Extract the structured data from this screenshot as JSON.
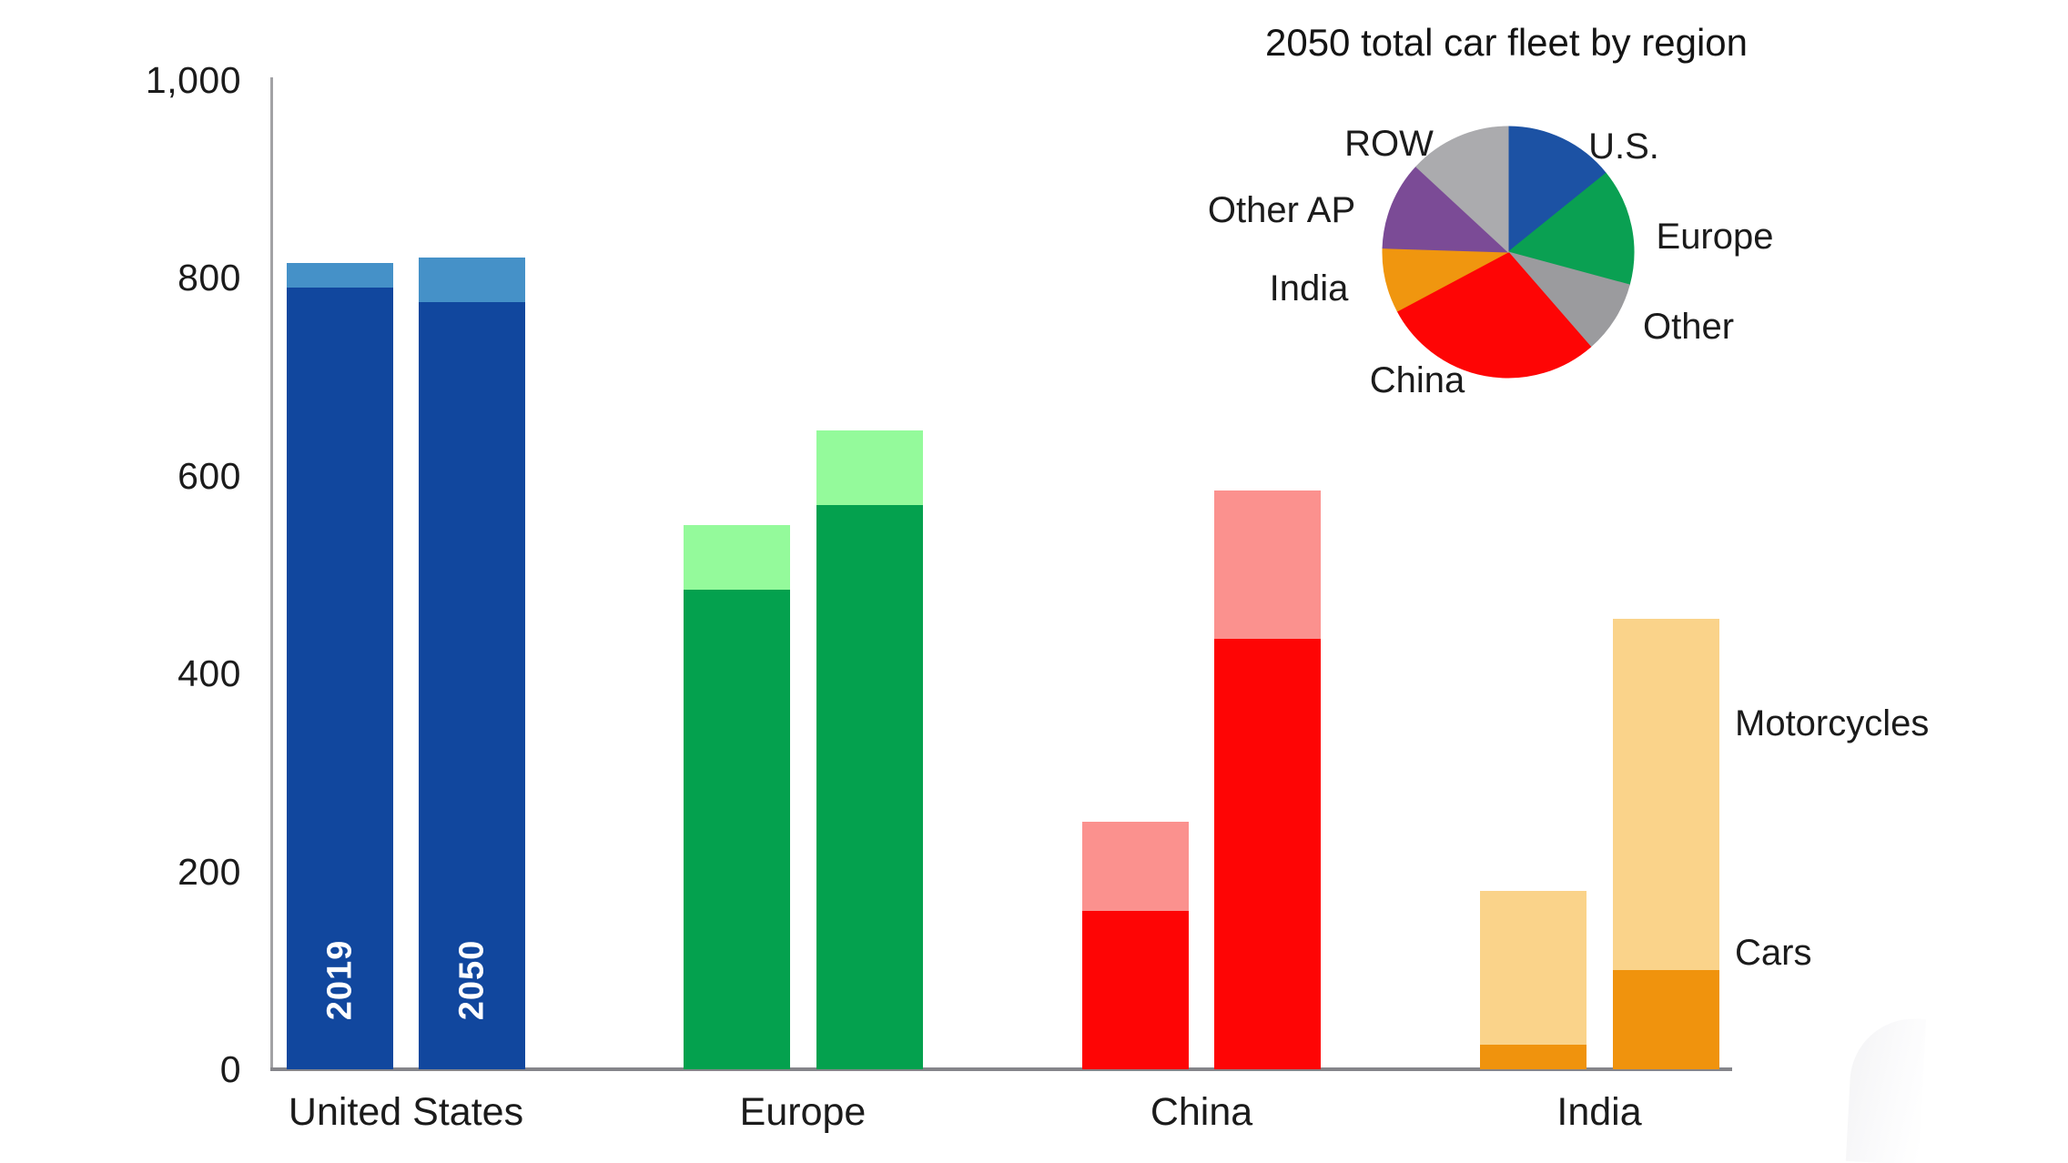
{
  "page": {
    "background": "#ffffff"
  },
  "labels": {
    "motorcycles": "Motorcycles",
    "cars": "Cars"
  },
  "chart_data": [
    {
      "type": "bar",
      "stacked": true,
      "categories": [
        "United States",
        "Europe",
        "China",
        "India"
      ],
      "bar_years": [
        "2019",
        "2050"
      ],
      "ylabel": "",
      "xlabel": "",
      "ylim": [
        0,
        1000
      ],
      "grid": false,
      "yticks": [
        {
          "value": 0,
          "label": "0"
        },
        {
          "value": 200,
          "label": "200"
        },
        {
          "value": 400,
          "label": "400"
        },
        {
          "value": 600,
          "label": "600"
        },
        {
          "value": 800,
          "label": "800"
        },
        {
          "value": 1000,
          "label": "1,000"
        }
      ],
      "segment_labels": {
        "bottom": "Cars",
        "top": "Motorcycles"
      },
      "regions": [
        {
          "name": "United States",
          "color_cars": "#11479E",
          "color_motorcycles": "#4591C8",
          "show_year_labels": true,
          "bars": [
            {
              "year": "2019",
              "cars": 790,
              "motorcycles": 25
            },
            {
              "year": "2050",
              "cars": 775,
              "motorcycles": 45
            }
          ]
        },
        {
          "name": "Europe",
          "color_cars": "#04A14E",
          "color_motorcycles": "#94FA9B",
          "show_year_labels": false,
          "bars": [
            {
              "year": "2019",
              "cars": 485,
              "motorcycles": 65
            },
            {
              "year": "2050",
              "cars": 570,
              "motorcycles": 75
            }
          ]
        },
        {
          "name": "China",
          "color_cars": "#FE0505",
          "color_motorcycles": "#FB918E",
          "show_year_labels": false,
          "bars": [
            {
              "year": "2019",
              "cars": 160,
              "motorcycles": 90
            },
            {
              "year": "2050",
              "cars": 435,
              "motorcycles": 150
            }
          ]
        },
        {
          "name": "India",
          "color_cars": "#F0930D",
          "color_motorcycles": "#FAD38A",
          "show_year_labels": false,
          "bars": [
            {
              "year": "2019",
              "cars": 25,
              "motorcycles": 155
            },
            {
              "year": "2050",
              "cars": 100,
              "motorcycles": 355
            }
          ]
        }
      ]
    },
    {
      "type": "pie",
      "title": "2050 total car fleet by region",
      "start_angle_deg": 0,
      "direction": "clockwise",
      "legend_position": "around-slices",
      "slices": [
        {
          "label": "U.S.",
          "pct": 14.2,
          "color": "#1C52A4"
        },
        {
          "label": "Europe",
          "pct": 15.0,
          "color": "#0AA052"
        },
        {
          "label": "Other",
          "pct": 9.4,
          "color": "#9B9B9E"
        },
        {
          "label": "China",
          "pct": 28.6,
          "color": "#FE0505"
        },
        {
          "label": "India",
          "pct": 8.3,
          "color": "#F0960F"
        },
        {
          "label": "Other AP",
          "pct": 11.4,
          "color": "#7B4B96"
        },
        {
          "label": "ROW",
          "pct": 13.1,
          "color": "#ABABAE"
        }
      ]
    }
  ]
}
